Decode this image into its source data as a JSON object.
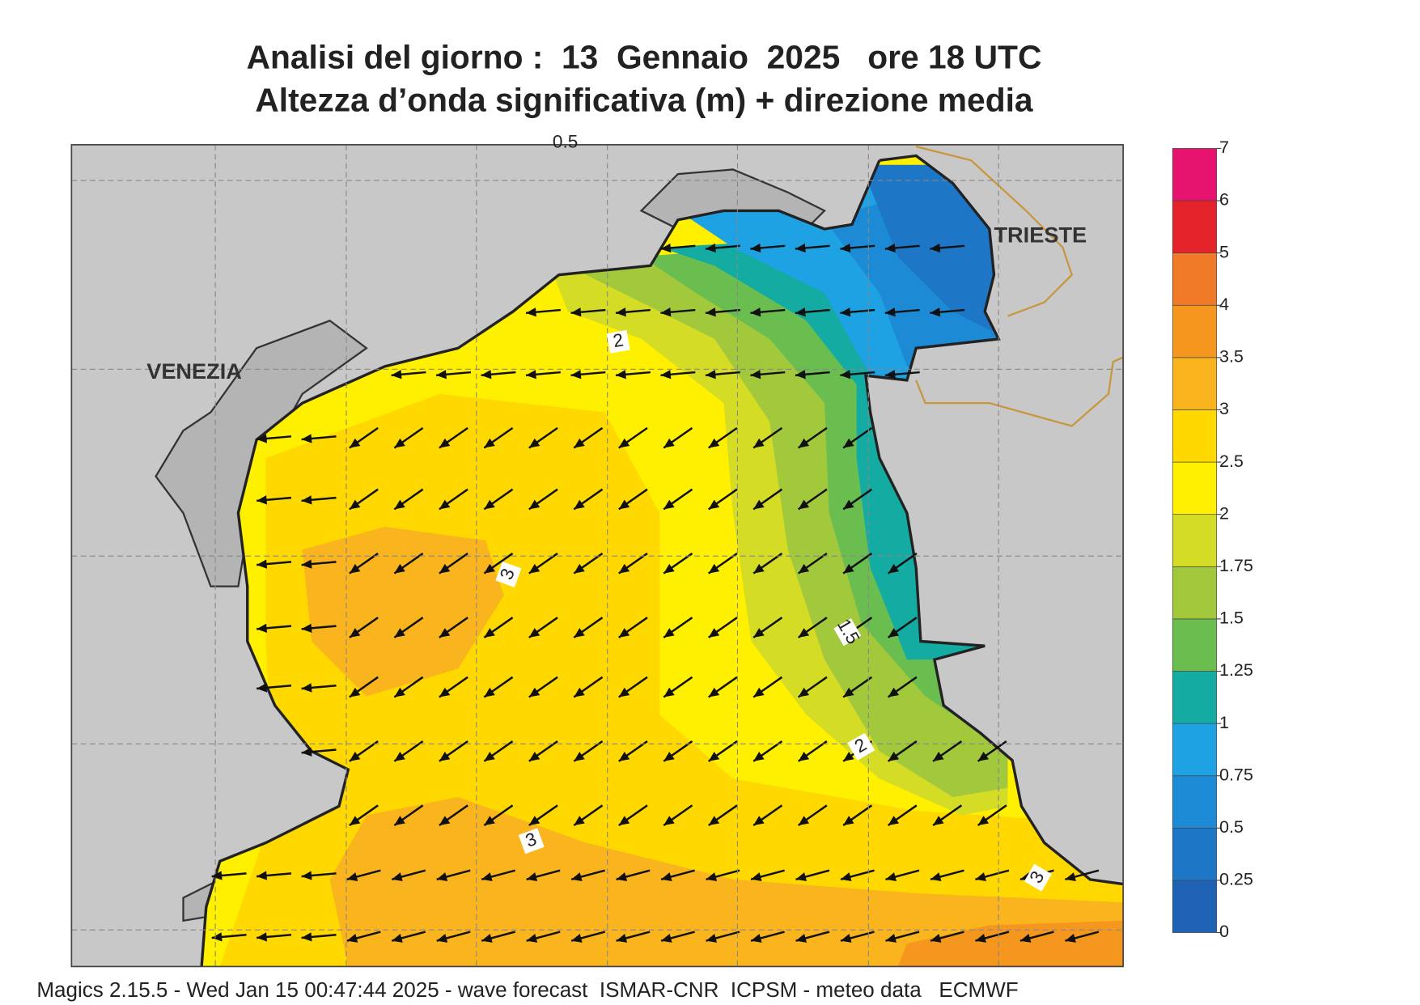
{
  "header": {
    "title": "Analisi del giorno :  13  Gennaio  2025   ore 18 UTC",
    "subtitle": "Altezza d’onda significativa (m) + direzione media"
  },
  "map": {
    "places": [
      "VENEZIA",
      "TRIESTE"
    ],
    "contour_labels": [
      0.5,
      2,
      3,
      1.5,
      2,
      3,
      3
    ]
  },
  "colorbar": {
    "levels": [
      0,
      0.25,
      0.5,
      0.75,
      1,
      1.25,
      1.5,
      1.75,
      2,
      2.5,
      3,
      3.5,
      4,
      5,
      6,
      7
    ],
    "colors": [
      "#1f62b4",
      "#1e76c6",
      "#1c8ad4",
      "#1ea2e4",
      "#14aca2",
      "#6abe50",
      "#a2c83c",
      "#d4dc26",
      "#fff000",
      "#ffd800",
      "#fab41e",
      "#f5961e",
      "#f07a28",
      "#e4242a",
      "#e6146e"
    ]
  },
  "footer": "Magics 2.15.5 - Wed Jan 15 00:47:44 2025 - wave forecast  ISMAR-CNR  ICPSM - meteo data   ECMWF"
}
